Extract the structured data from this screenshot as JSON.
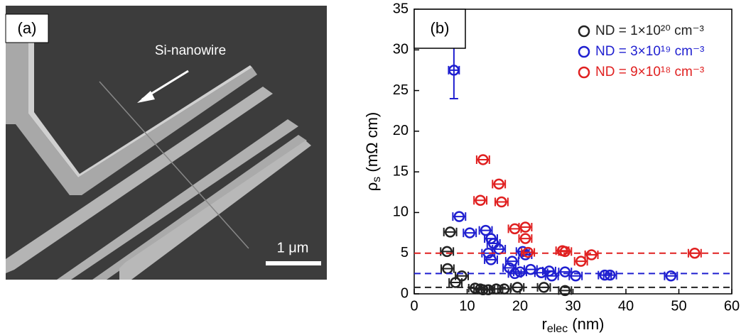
{
  "image_panel": {
    "label": "(a)",
    "annotation": "Si-nanowire",
    "scale_bar": "1 μm"
  },
  "chart_data": {
    "type": "scatter",
    "label": "(b)",
    "xlabel": {
      "symbol": "r",
      "subscript": "elec",
      "unit": " (nm)"
    },
    "ylabel": {
      "symbol": "ρ",
      "subscript": "s",
      "unit": " (mΩ cm)"
    },
    "xlim": [
      0,
      60
    ],
    "xticks": [
      0,
      10,
      20,
      30,
      40,
      50,
      60
    ],
    "ylim": [
      0,
      35
    ],
    "yticks": [
      0,
      5,
      10,
      15,
      20,
      25,
      30,
      35
    ],
    "series": [
      {
        "name": "ND = 1×10²⁰ cm⁻³",
        "color": "#222222",
        "hline": 0.8,
        "x": [
          6.8,
          6.2,
          6.3,
          7.8,
          9,
          11.5,
          12.5,
          13,
          14,
          15.5,
          17,
          19.5,
          24.5,
          28.5
        ],
        "values": [
          7.6,
          5.2,
          3.1,
          1.4,
          2.2,
          0.7,
          0.6,
          0.5,
          0.5,
          0.6,
          0.6,
          0.8,
          0.8,
          0.4
        ],
        "xerr": [
          1.2,
          1.2,
          1.2,
          1.2,
          1.2,
          1.2,
          1.2,
          1.2,
          1.2,
          1.2,
          1.2,
          1.2,
          1.2,
          1.2
        ]
      },
      {
        "name": "ND = 3×10¹⁹ cm⁻³",
        "color": "#1f1fd0",
        "hline": 2.5,
        "x": [
          7.5,
          8.5,
          10.5,
          13.5,
          14.5,
          15,
          14,
          16,
          14.5,
          18.5,
          18,
          19,
          20.5,
          21,
          22,
          20,
          24,
          25.5,
          26,
          28.5,
          30.5,
          36,
          37,
          48.5
        ],
        "values": [
          27.5,
          9.5,
          7.5,
          7.8,
          6.8,
          6.2,
          5,
          5.5,
          4.2,
          4,
          3.2,
          2.5,
          5.2,
          4.8,
          3,
          2.7,
          2.6,
          2.8,
          2.2,
          2.7,
          2.2,
          2.3,
          2.3,
          2.2
        ],
        "xerr": [
          1,
          1.2,
          1.2,
          1.2,
          1.2,
          1.2,
          1.2,
          1.2,
          1.2,
          1.2,
          1.2,
          1.2,
          1.2,
          1.2,
          1.2,
          1.2,
          1.2,
          1.2,
          1.2,
          1.2,
          1.2,
          1.2,
          1.2,
          1.2
        ],
        "yerr": [
          3.5,
          null,
          null,
          null,
          null,
          null,
          null,
          null,
          null,
          null,
          null,
          null,
          null,
          null,
          null,
          null,
          null,
          null,
          null,
          null,
          null,
          null,
          null,
          null
        ]
      },
      {
        "name": "ND = 9×10¹⁸ cm⁻³",
        "color": "#e02020",
        "hline": 5,
        "x": [
          13,
          12.5,
          16,
          16.5,
          19,
          21,
          21,
          21.5,
          28,
          28.5,
          31.5,
          33.5,
          53
        ],
        "values": [
          16.5,
          11.5,
          13.5,
          11.3,
          8,
          8.2,
          6.8,
          5.1,
          5.3,
          5.2,
          4,
          4.8,
          5
        ],
        "xerr": [
          1.2,
          1.2,
          1.2,
          1.2,
          1.2,
          1.2,
          1.2,
          1.2,
          1.2,
          1.2,
          1.2,
          1.2,
          1.2
        ]
      }
    ]
  }
}
